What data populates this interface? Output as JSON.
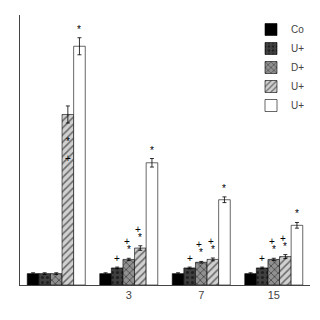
{
  "chart_data": {
    "type": "bar",
    "categories": [
      null,
      "3",
      "7",
      "15"
    ],
    "series": [
      {
        "name": "Co",
        "color": "black",
        "values": [
          0.04,
          0.04,
          0.04,
          0.04
        ],
        "errors": [
          0.003,
          0.003,
          0.003,
          0.003
        ]
      },
      {
        "name": "U+",
        "color": "#404040",
        "values": [
          0.04,
          0.06,
          0.06,
          0.06
        ],
        "errors": [
          0.003,
          0.003,
          0.003,
          0.003
        ]
      },
      {
        "name": "D+",
        "color": "#909090",
        "values": [
          0.04,
          0.09,
          0.08,
          0.09
        ],
        "errors": [
          0.003,
          0.004,
          0.003,
          0.004
        ]
      },
      {
        "name": "U+",
        "color": "#d0d0d0",
        "values": [
          0.6,
          0.13,
          0.09,
          0.1
        ],
        "errors": [
          0.03,
          0.008,
          0.005,
          0.007
        ]
      },
      {
        "name": "U+",
        "color": "white",
        "values": [
          0.84,
          0.43,
          0.3,
          0.21
        ],
        "errors": [
          0.03,
          0.015,
          0.01,
          0.01
        ]
      }
    ],
    "ylim": [
      0,
      0.95
    ],
    "yticks": [],
    "tick_labels": "x",
    "grid": false,
    "legend": "upper right",
    "annotations": [
      {
        "text": "*",
        "series": 4,
        "category": 0
      },
      {
        "text": "*",
        "series": 3,
        "category": 0,
        "y": 0.4785
      },
      {
        "text": "+",
        "series": 3,
        "category": 0,
        "y": 0.4176
      },
      {
        "text": "*",
        "series": 4,
        "category": 1
      },
      {
        "text": "*",
        "series": 3,
        "category": 1
      },
      {
        "text": "+",
        "series": 3,
        "category": 1
      },
      {
        "text": "*",
        "series": 2,
        "category": 1
      },
      {
        "text": "+",
        "series": 2,
        "category": 1
      },
      {
        "text": "+",
        "series": 1,
        "category": 1
      },
      {
        "text": "*",
        "series": 4,
        "category": 2
      },
      {
        "text": "*",
        "series": 3,
        "category": 2
      },
      {
        "text": "+",
        "series": 3,
        "category": 2
      },
      {
        "text": "*",
        "series": 2,
        "category": 2
      },
      {
        "text": "+",
        "series": 2,
        "category": 2
      },
      {
        "text": "+",
        "series": 1,
        "category": 2
      },
      {
        "text": "*",
        "series": 4,
        "category": 3
      },
      {
        "text": "*",
        "series": 3,
        "category": 3
      },
      {
        "text": "+",
        "series": 3,
        "category": 3
      },
      {
        "text": "*",
        "series": 2,
        "category": 3
      },
      {
        "text": "+",
        "series": 2,
        "category": 3
      },
      {
        "text": "+",
        "series": 1,
        "category": 3
      }
    ]
  }
}
